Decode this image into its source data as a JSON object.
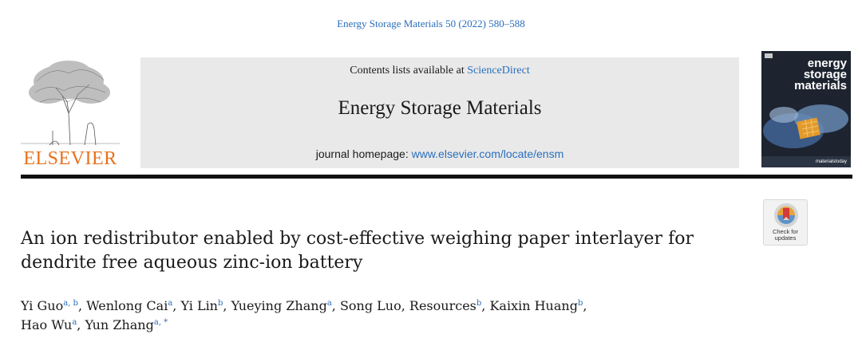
{
  "header": {
    "citation": "Energy Storage Materials 50 (2022) 580–588",
    "contents_prefix": "Contents lists available at ",
    "contents_link": "ScienceDirect",
    "journal_name": "Energy Storage Materials",
    "homepage_prefix": "journal homepage: ",
    "homepage_link": "www.elsevier.com/locate/ensm"
  },
  "publisher": {
    "name": "ELSEVIER"
  },
  "cover": {
    "title_line1": "energy",
    "title_line2": "storage",
    "title_line3": "materials",
    "footer": "materialstoday"
  },
  "crossmark": {
    "line1": "Check for",
    "line2": "updates"
  },
  "article": {
    "title": "An ion redistributor enabled by cost-effective weighing paper interlayer for dendrite free aqueous zinc-ion battery"
  },
  "authors": [
    {
      "name": "Yi Guo",
      "aff": "a, b"
    },
    {
      "name": "Wenlong Cai",
      "aff": "a"
    },
    {
      "name": "Yi Lin",
      "aff": "b"
    },
    {
      "name": "Yueying Zhang",
      "aff": "a"
    },
    {
      "name": "Song Luo, Resources",
      "aff": "b"
    },
    {
      "name": "Kaixin Huang",
      "aff": "b"
    },
    {
      "name": "Hao Wu",
      "aff": "a"
    },
    {
      "name": "Yun Zhang",
      "aff": "a, *"
    }
  ],
  "colors": {
    "link": "#2a6ebb",
    "elsevier_orange": "#e9711c",
    "banner_gray": "#e9e9e9"
  }
}
